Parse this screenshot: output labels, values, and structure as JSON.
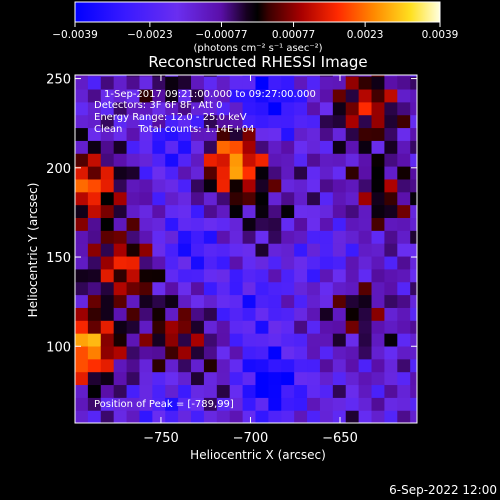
{
  "chart_data": {
    "type": "heatmap",
    "title": "Reconstructed RHESSI Image",
    "xlabel": "Heliocentric X (arcsec)",
    "ylabel": "Heliocentric Y (arcsec)",
    "xlim": [
      -798,
      -607
    ],
    "ylim": [
      57,
      252
    ],
    "x_ticks": [
      {
        "value": -750,
        "label": "−750"
      },
      {
        "value": -700,
        "label": "−700"
      },
      {
        "value": -650,
        "label": "−650"
      }
    ],
    "y_ticks": [
      {
        "value": 100,
        "label": "100"
      },
      {
        "value": 150,
        "label": "150"
      },
      {
        "value": 200,
        "label": "200"
      },
      {
        "value": 250,
        "label": "250"
      }
    ],
    "colorbar": {
      "min": -0.0039,
      "max": 0.0039,
      "ticks": [
        {
          "value": -0.0039,
          "label": "−0.0039"
        },
        {
          "value": -0.0023,
          "label": "−0.0023"
        },
        {
          "value": -0.00077,
          "label": "−0.00077"
        },
        {
          "value": 0.00077,
          "label": "0.00077"
        },
        {
          "value": 0.0023,
          "label": "0.0023"
        },
        {
          "value": 0.0039,
          "label": "0.0039"
        }
      ],
      "unit_label": "(photons cm⁻² s⁻¹ asec⁻²)"
    },
    "annotations": [
      "1-Sep-2017 09:21:00.000 to 09:27:00.000",
      "Detectors: 3F 6F 8F, Att 0",
      "Energy Range: 12.0 - 25.0 keV",
      "Clean     Total counts: 1.14E+04"
    ],
    "peak_label": "Position of Peak = [-789,99]",
    "grid": "off",
    "legend": "colorbar-top",
    "sources": [
      {
        "x": -710,
        "y": 205,
        "value": 0.0039
      },
      {
        "x": -793,
        "y": 99,
        "value": 0.0039
      },
      {
        "x": -790,
        "y": 190,
        "value": 0.003
      },
      {
        "x": -770,
        "y": 145,
        "value": 0.0025
      },
      {
        "x": -740,
        "y": 105,
        "value": 0.0018
      },
      {
        "x": -635,
        "y": 235,
        "value": 0.0022
      },
      {
        "x": -625,
        "y": 185,
        "value": 0.0014
      },
      {
        "x": -640,
        "y": 120,
        "value": 0.0012
      },
      {
        "x": -745,
        "y": 240,
        "value": 0.001
      },
      {
        "x": -690,
        "y": 170,
        "value": 0.0006
      },
      {
        "x": -720,
        "y": 75,
        "value": 0.0008
      },
      {
        "x": -740,
        "y": 215,
        "value": -0.0025
      },
      {
        "x": -690,
        "y": 235,
        "value": -0.0028
      },
      {
        "x": -690,
        "y": 80,
        "value": -0.003
      },
      {
        "x": -735,
        "y": 155,
        "value": -0.002
      },
      {
        "x": -700,
        "y": 125,
        "value": -0.0016
      },
      {
        "x": -660,
        "y": 150,
        "value": -0.0013
      },
      {
        "x": -740,
        "y": 70,
        "value": -0.0018
      }
    ]
  },
  "footer": {
    "date": "6-Sep-2022 12:00"
  },
  "colors": {
    "background": "#000000",
    "text": "#ffffff"
  }
}
